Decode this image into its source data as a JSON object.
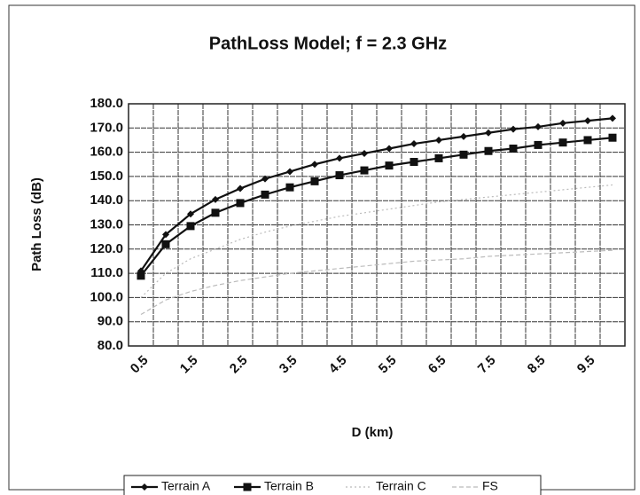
{
  "chart_data": {
    "type": "line",
    "title": "PathLoss Model; f = 2.3 GHz",
    "x_label": "D (km)",
    "y_label": "Path Loss (dB)",
    "categories": [
      "0.5",
      null,
      "1.5",
      null,
      "2.5",
      null,
      "3.5",
      null,
      "4.5",
      null,
      "5.5",
      null,
      "6.5",
      null,
      "7.5",
      null,
      "8.5",
      null,
      "9.5",
      null
    ],
    "series": [
      {
        "name": "Terrain A",
        "color": "#111111",
        "values": [
          111,
          126,
          134.5,
          140.5,
          145,
          149,
          152,
          155,
          157.5,
          159.5,
          161.5,
          163.5,
          165,
          166.5,
          168,
          169.5,
          170.5,
          172,
          173,
          174
        ]
      },
      {
        "name": "Terrain B",
        "color": "#111111",
        "values": [
          109,
          122,
          129.5,
          135,
          139,
          142.5,
          145.5,
          148,
          150.5,
          152.5,
          154.5,
          156,
          157.5,
          159,
          160.5,
          161.5,
          163,
          164,
          165,
          166
        ]
      },
      {
        "name": "Terrain C",
        "color": "#bbbbbb",
        "values": [
          100,
          110,
          116,
          120,
          124,
          127,
          129.5,
          131.5,
          133.5,
          135,
          136.5,
          138,
          139.5,
          140.5,
          141.5,
          142.5,
          143.5,
          144.5,
          145.5,
          146.5
        ]
      },
      {
        "name": "FS",
        "color": "#bbbbbb",
        "values": [
          93,
          99,
          102.5,
          105,
          107,
          108.5,
          110,
          111,
          112,
          113,
          114,
          115,
          115.5,
          116,
          117,
          117.5,
          118,
          118.5,
          119,
          119.5
        ]
      }
    ],
    "ylim": [
      80,
      180
    ],
    "yticks": [
      {
        "value": 80,
        "label": "80.0"
      },
      {
        "value": 90,
        "label": "90.0"
      },
      {
        "value": 100,
        "label": "100.0"
      },
      {
        "value": 110,
        "label": "110.0"
      },
      {
        "value": 120,
        "label": "120.0"
      },
      {
        "value": 130,
        "label": "130.0"
      },
      {
        "value": 140,
        "label": "140.0"
      },
      {
        "value": 150,
        "label": "150.0"
      },
      {
        "value": 160,
        "label": "160.0"
      },
      {
        "value": 170,
        "label": "170.0"
      },
      {
        "value": 180,
        "label": "180.0"
      }
    ],
    "grid": true
  }
}
